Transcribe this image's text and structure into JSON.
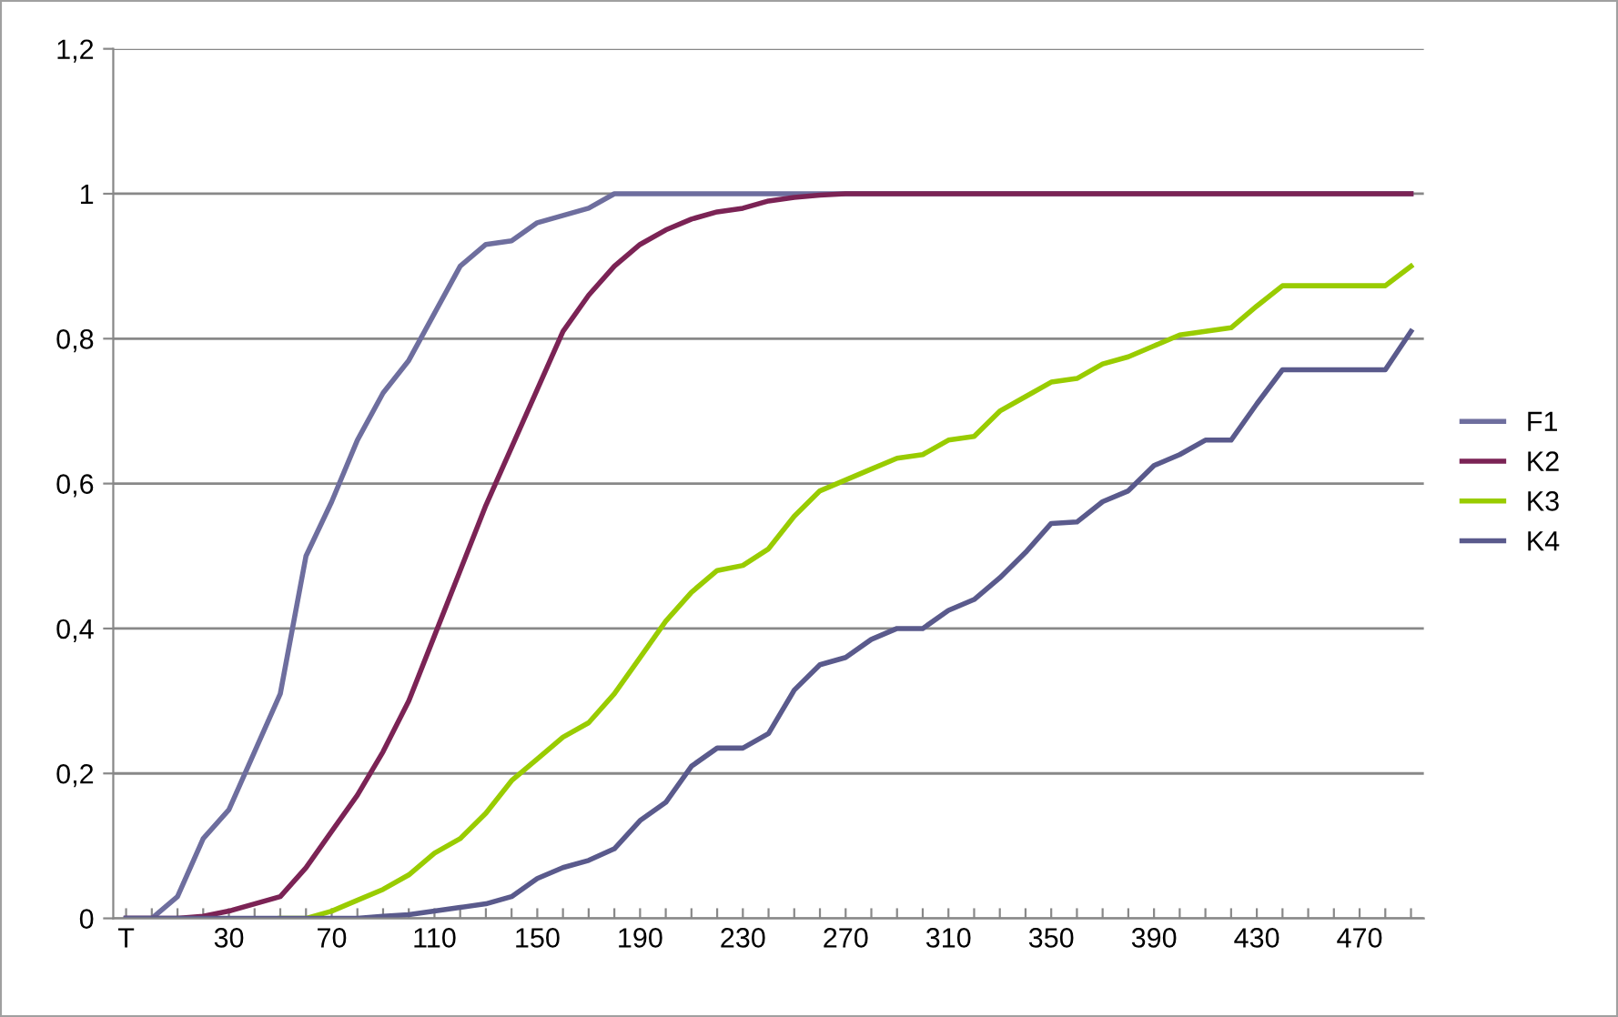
{
  "chart_data": {
    "type": "line",
    "categories": [
      "T",
      null,
      null,
      null,
      "30",
      null,
      null,
      null,
      "70",
      null,
      null,
      null,
      "110",
      null,
      null,
      null,
      "150",
      null,
      null,
      null,
      "190",
      null,
      null,
      null,
      "230",
      null,
      null,
      null,
      "270",
      null,
      null,
      null,
      "310",
      null,
      null,
      null,
      "350",
      null,
      null,
      null,
      "390",
      null,
      null,
      null,
      "430",
      null,
      null,
      null,
      "470",
      null,
      null
    ],
    "series": [
      {
        "name": "F1",
        "color": "#6e6e9e",
        "values": [
          0,
          0,
          0.03,
          0.11,
          0.15,
          0.23,
          0.31,
          0.5,
          0.575,
          0.66,
          0.725,
          0.77,
          0.835,
          0.9,
          0.93,
          0.935,
          0.96,
          0.97,
          0.98,
          1,
          1,
          1,
          1,
          1,
          1,
          1,
          1,
          1,
          1,
          1,
          1,
          1,
          1,
          1,
          1,
          1,
          1,
          1,
          1,
          1,
          1,
          1,
          1,
          1,
          1,
          1,
          1,
          1,
          1,
          1,
          1
        ]
      },
      {
        "name": "K2",
        "color": "#7b2355",
        "values": [
          0,
          0,
          0,
          0.003,
          0.01,
          0.02,
          0.03,
          0.07,
          0.12,
          0.17,
          0.23,
          0.3,
          0.39,
          0.48,
          0.57,
          0.65,
          0.73,
          0.81,
          0.86,
          0.9,
          0.93,
          0.95,
          0.965,
          0.975,
          0.98,
          0.99,
          0.995,
          0.998,
          1,
          1,
          1,
          1,
          1,
          1,
          1,
          1,
          1,
          1,
          1,
          1,
          1,
          1,
          1,
          1,
          1,
          1,
          1,
          1,
          1,
          1,
          1
        ]
      },
      {
        "name": "K3",
        "color": "#99cc00",
        "values": [
          null,
          null,
          null,
          null,
          null,
          null,
          0,
          0,
          0.01,
          0.025,
          0.04,
          0.06,
          0.09,
          0.11,
          0.145,
          0.19,
          0.22,
          0.25,
          0.27,
          0.31,
          0.36,
          0.41,
          0.45,
          0.48,
          0.487,
          0.51,
          0.555,
          0.59,
          0.605,
          0.62,
          0.635,
          0.64,
          0.66,
          0.665,
          0.7,
          0.72,
          0.74,
          0.745,
          0.765,
          0.775,
          0.79,
          0.805,
          0.81,
          0.815,
          0.845,
          0.873,
          0.873,
          0.873,
          0.873,
          0.873,
          0.9
        ]
      },
      {
        "name": "K4",
        "color": "#5a5a8c",
        "values": [
          0,
          0,
          0,
          0,
          0,
          0,
          0,
          0,
          0,
          0,
          0.003,
          0.005,
          0.01,
          0.015,
          0.02,
          0.03,
          0.055,
          0.07,
          0.08,
          0.096,
          0.135,
          0.16,
          0.21,
          0.235,
          0.235,
          0.255,
          0.315,
          0.35,
          0.36,
          0.385,
          0.4,
          0.4,
          0.425,
          0.44,
          0.47,
          0.505,
          0.545,
          0.547,
          0.575,
          0.59,
          0.625,
          0.64,
          0.66,
          0.66,
          0.71,
          0.757,
          0.757,
          0.757,
          0.757,
          0.757,
          0.81
        ]
      }
    ],
    "ylim": [
      0,
      1.2
    ],
    "yticks": [
      0,
      {
        "value": 0.2,
        "label": "0,2"
      },
      {
        "value": 0.4,
        "label": "0,4"
      },
      {
        "value": 0.6,
        "label": "0,6"
      },
      {
        "value": 0.8,
        "label": "0,8"
      },
      1,
      {
        "value": 1.2,
        "label": "1,2"
      }
    ],
    "grid": "y",
    "legend": "right",
    "marker": "none",
    "line_style": "solid"
  }
}
